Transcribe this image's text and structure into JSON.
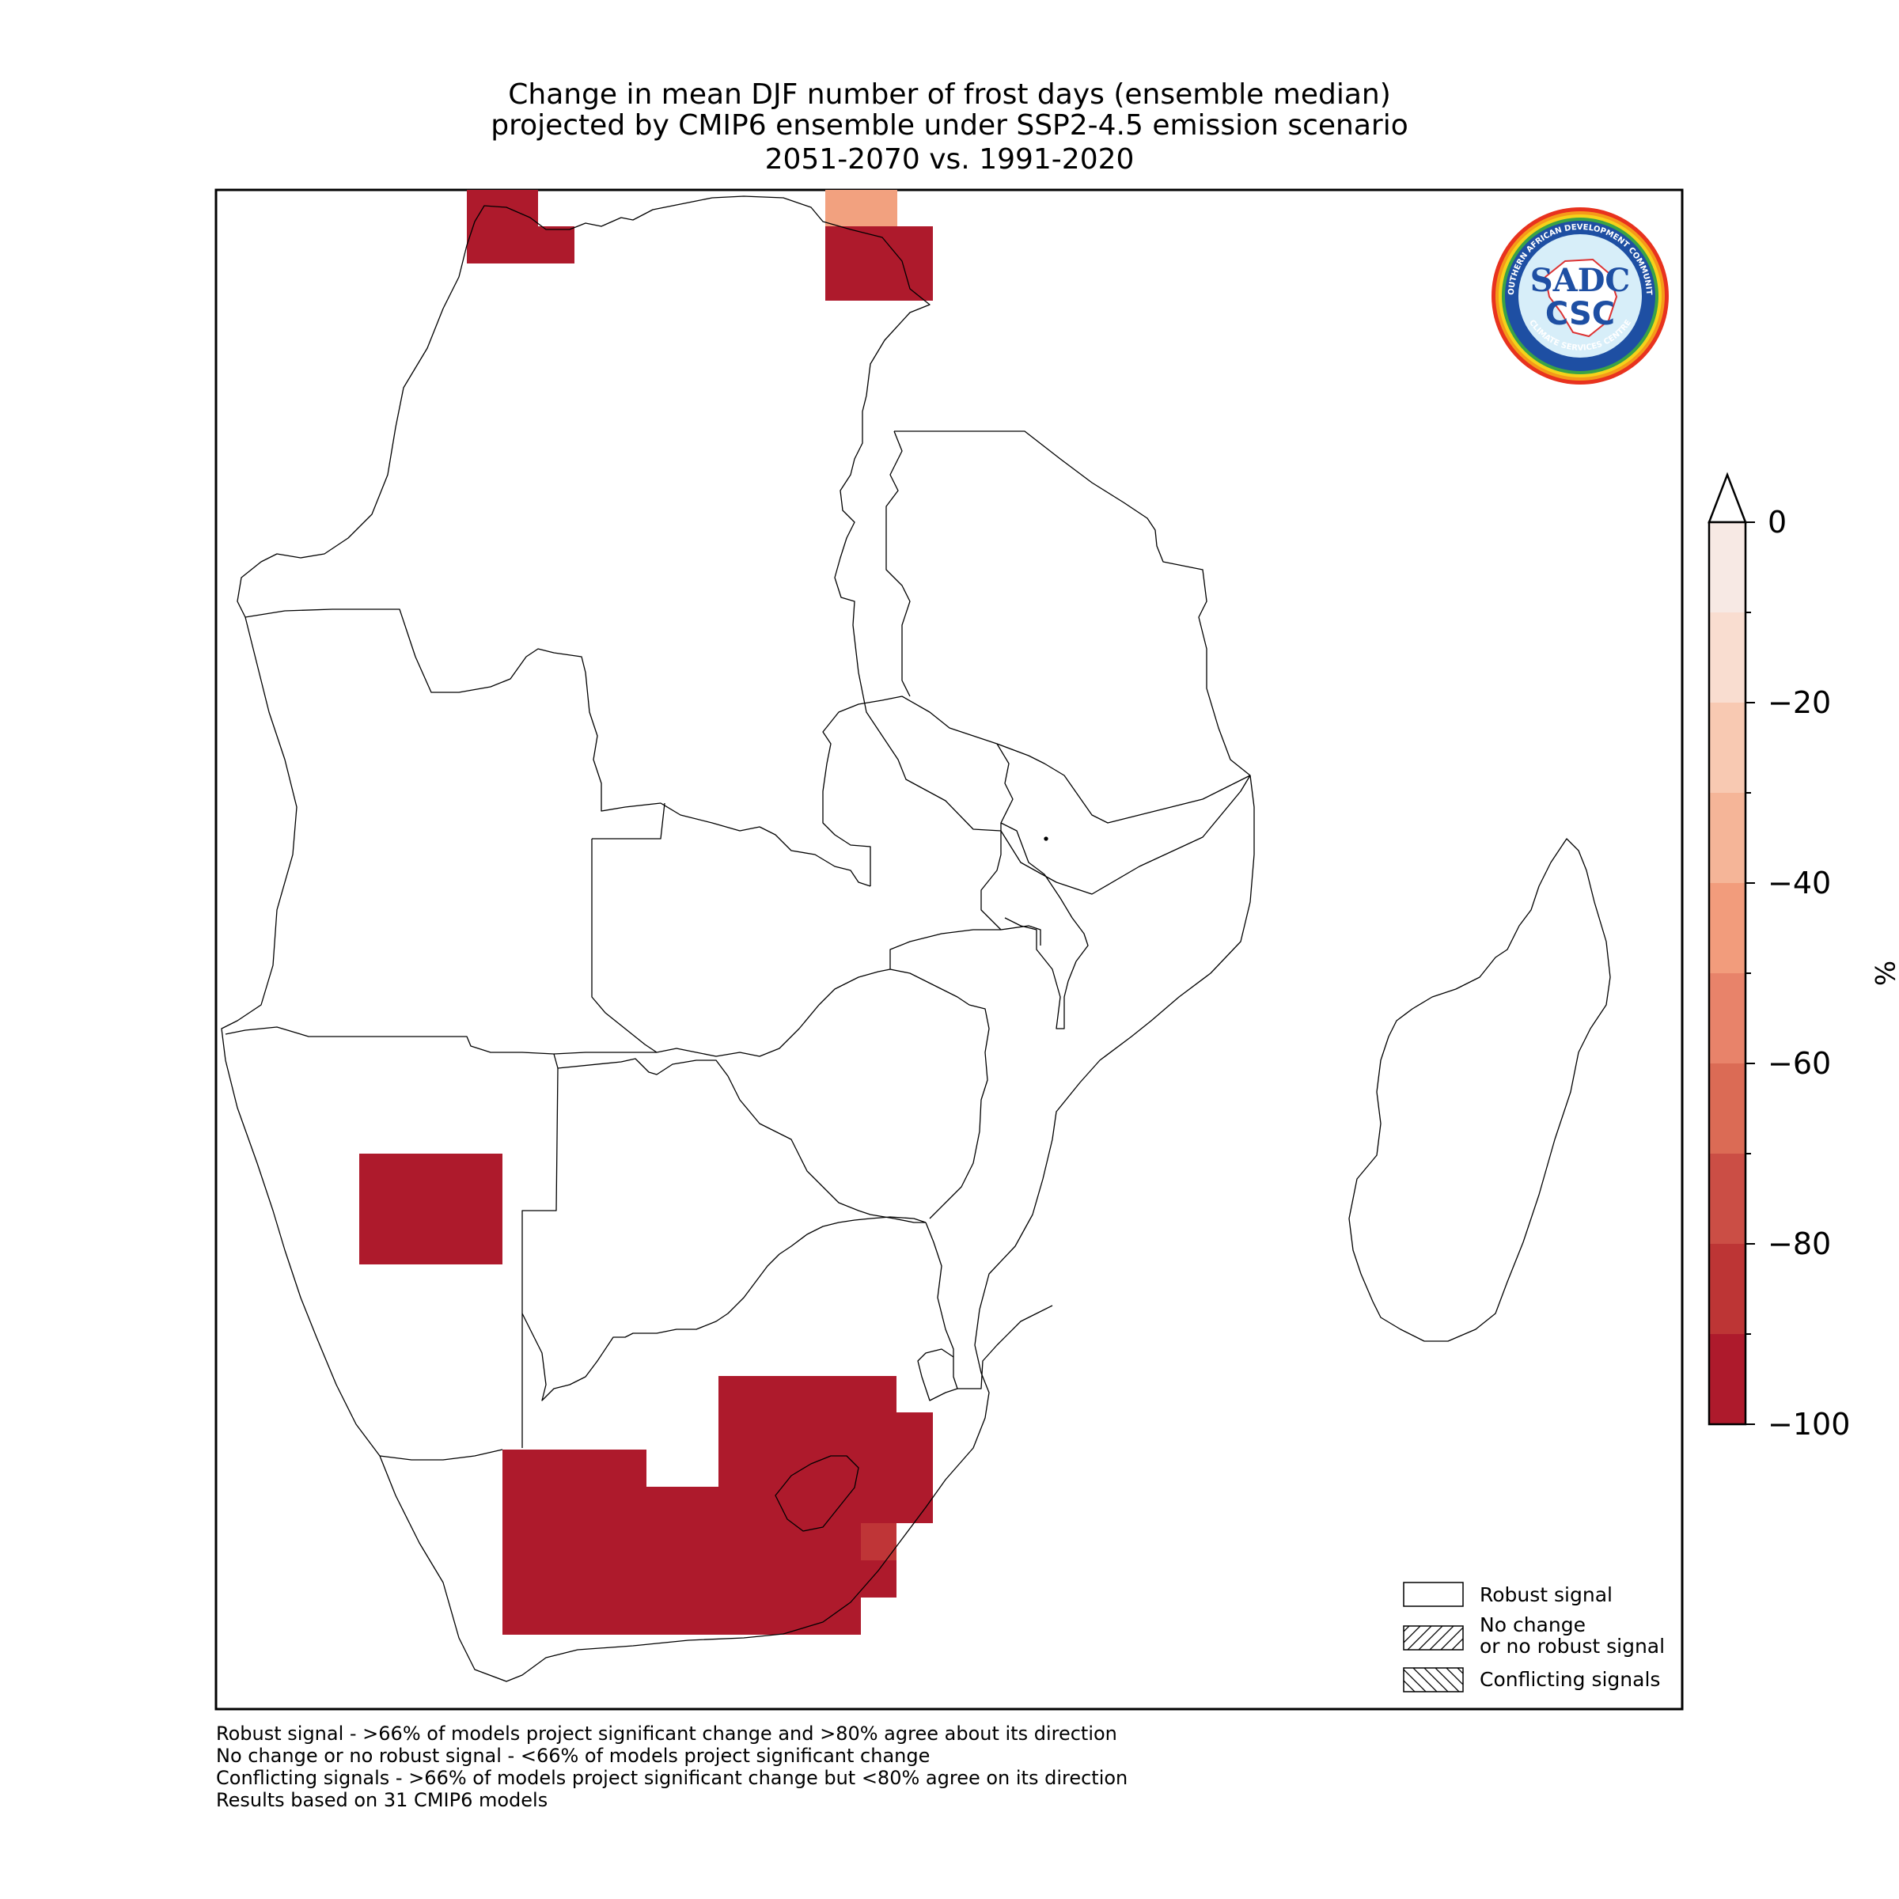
{
  "title": {
    "line1": "Change in mean DJF number of frost days (ensemble median)",
    "line2": "projected by CMIP6 ensemble under SSP2-4.5 emission scenario",
    "line3": "2051-2070 vs. 1991-2020"
  },
  "logo": {
    "top_text": "SOUTHERN AFRICAN DEVELOPMENT COMMUNITY",
    "bottom_text": "CLIMATE SERVICES CENTRE",
    "mark1": "SADC",
    "mark2": "CSC",
    "icon": "sadc-csc-logo"
  },
  "colorbar": {
    "unit": "%",
    "ticks": [
      "0",
      "−20",
      "−40",
      "−60",
      "−80",
      "−100"
    ],
    "range": [
      -100,
      0
    ],
    "levels": [
      0,
      -10,
      -20,
      -30,
      -40,
      -50,
      -60,
      -70,
      -80,
      -90,
      -100
    ],
    "colors": [
      "#f7e9e4",
      "#f9ddd0",
      "#f8c9b2",
      "#f5b598",
      "#f29c7c",
      "#e8836a",
      "#db6b55",
      "#cb4e45",
      "#bd3535",
      "#ae1a2c"
    ],
    "extend": "max"
  },
  "legend": {
    "robust": "Robust signal",
    "nochange_line1": "No change",
    "nochange_line2": "or no robust signal",
    "conflicting": "Conflicting signals"
  },
  "footnotes": {
    "line1": "Robust signal - >66% of models project significant change and >80% agree about its direction",
    "line2": "No change or no robust signal - <66% of models project significant change",
    "line3": "Conflicting signals - >66% of models project significant change but <80% agree on its direction",
    "line4": "Results based on 31 CMIP6 models"
  },
  "map_data": {
    "region": "Southern Africa (SADC)",
    "cells": [
      {
        "area": "DR Congo north-west",
        "value": -100
      },
      {
        "area": "DR Congo north-east",
        "value": -100
      },
      {
        "area": "DR Congo north-east upper",
        "value": -45
      },
      {
        "area": "Namibia central",
        "value": -100
      },
      {
        "area": "South Africa",
        "value": -100
      },
      {
        "area": "South Africa east coast",
        "value": -85
      }
    ]
  }
}
